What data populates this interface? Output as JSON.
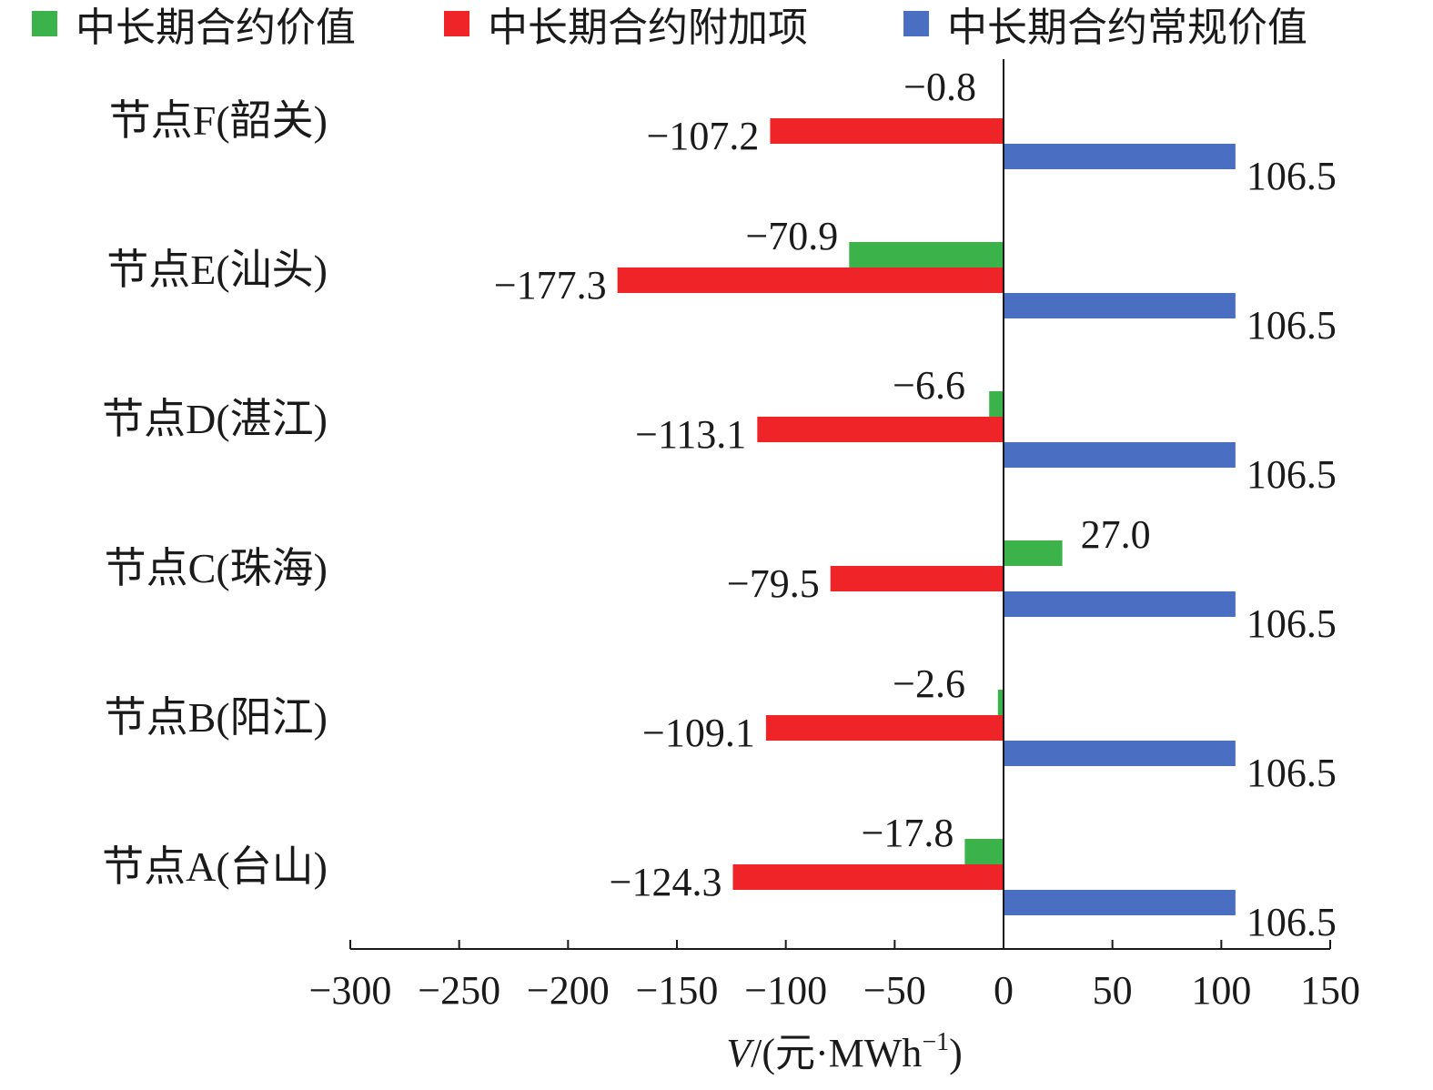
{
  "chart_data": {
    "type": "bar",
    "orientation": "horizontal",
    "categories": [
      "节点F(韶关)",
      "节点E(汕头)",
      "节点D(湛江)",
      "节点C(珠海)",
      "节点B(阳江)",
      "节点A(台山)"
    ],
    "series": [
      {
        "name": "中长期合约价值",
        "color": "#3cb24a",
        "values": [
          null,
          -70.9,
          -6.6,
          27.0,
          -2.6,
          -17.8
        ],
        "labels": [
          "",
          "−70.9",
          "−6.6",
          "27.0",
          "−2.6",
          "−17.8"
        ]
      },
      {
        "name": "中长期合约附加项",
        "color": "#ee2428",
        "values": [
          -107.2,
          -177.3,
          -113.1,
          -79.5,
          -109.1,
          -124.3
        ],
        "labels": [
          "−107.2",
          "−177.3",
          "−113.1",
          "−79.5",
          "−109.1",
          "−124.3"
        ]
      },
      {
        "name": "中长期合约常规价值",
        "color": "#4a6ec2",
        "values": [
          106.5,
          106.5,
          106.5,
          106.5,
          106.5,
          106.5
        ],
        "labels": [
          "106.5",
          "106.5",
          "106.5",
          "106.5",
          "106.5",
          "106.5"
        ]
      }
    ],
    "extra_annotation": "−0.8",
    "xlim": [
      -300,
      150
    ],
    "xticks": [
      -300,
      -250,
      -200,
      -150,
      -100,
      -50,
      0,
      50,
      100,
      150
    ],
    "xtick_labels": [
      "−300",
      "−250",
      "−200",
      "−150",
      "−100",
      "−50",
      "0",
      "50",
      "100",
      "150"
    ],
    "xlabel": {
      "italic": "V",
      "rest": "/(元·MWh",
      "sup": "−1",
      "close": ")"
    },
    "legend_position": "top",
    "grid": false
  }
}
